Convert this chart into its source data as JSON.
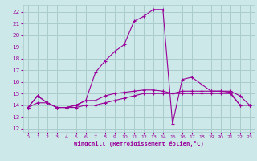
{
  "bg_color": "#cce8e8",
  "grid_color": "#aacccc",
  "line_color": "#990099",
  "xlabel": "Windchill (Refroidissement éolien,°C)",
  "ylabel_ticks": [
    12,
    13,
    14,
    15,
    16,
    17,
    18,
    19,
    20,
    21,
    22
  ],
  "xlabel_ticks": [
    0,
    1,
    2,
    3,
    4,
    5,
    6,
    7,
    8,
    9,
    10,
    11,
    12,
    13,
    14,
    15,
    16,
    17,
    18,
    19,
    20,
    21,
    22,
    23
  ],
  "ylim": [
    11.7,
    22.6
  ],
  "xlim": [
    -0.5,
    23.5
  ],
  "series1_x": [
    0,
    1,
    2,
    3,
    4,
    5,
    6,
    7,
    8,
    9,
    10,
    11,
    12,
    13,
    14,
    15,
    16,
    17,
    18,
    19,
    20,
    21,
    22,
    23
  ],
  "series1_y": [
    13.8,
    14.2,
    14.2,
    13.8,
    13.8,
    13.8,
    14.0,
    14.0,
    14.2,
    14.4,
    14.6,
    14.8,
    15.0,
    15.0,
    15.0,
    15.0,
    15.0,
    15.0,
    15.0,
    15.0,
    15.0,
    15.0,
    14.0,
    14.0
  ],
  "series2_x": [
    0,
    1,
    2,
    3,
    4,
    5,
    6,
    7,
    8,
    9,
    10,
    11,
    12,
    13,
    14,
    15,
    16,
    17,
    18,
    19,
    20,
    21,
    22,
    23
  ],
  "series2_y": [
    13.8,
    14.8,
    14.2,
    13.8,
    13.8,
    14.0,
    14.4,
    14.4,
    14.8,
    15.0,
    15.1,
    15.2,
    15.3,
    15.3,
    15.2,
    15.0,
    15.2,
    15.2,
    15.2,
    15.2,
    15.2,
    15.1,
    14.0,
    14.0
  ],
  "series3_x": [
    0,
    1,
    2,
    3,
    4,
    5,
    6,
    7,
    8,
    9,
    10,
    11,
    12,
    13,
    14,
    15,
    16,
    17,
    18,
    19,
    20,
    21,
    22,
    23
  ],
  "series3_y": [
    13.8,
    14.8,
    14.2,
    13.8,
    13.8,
    14.0,
    14.4,
    16.8,
    17.8,
    18.6,
    19.2,
    21.2,
    21.6,
    22.2,
    22.2,
    12.4,
    16.2,
    16.4,
    15.8,
    15.2,
    15.2,
    15.2,
    14.8,
    14.0
  ]
}
